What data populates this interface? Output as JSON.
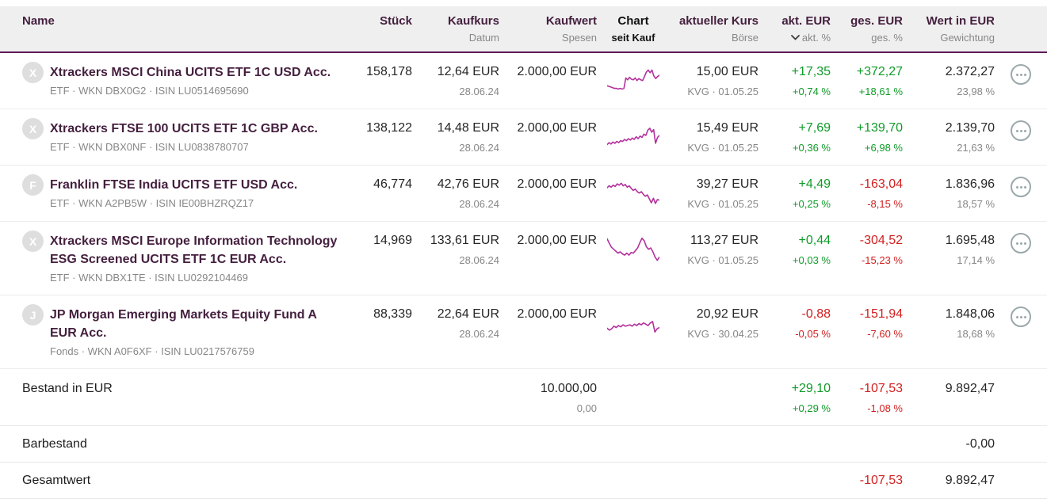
{
  "colors": {
    "accent": "#b3309c",
    "positive": "#0f9b28",
    "negative": "#d21f1f",
    "header_text": "#441f3e",
    "header_background": "#efefef",
    "header_border": "#5e1a56"
  },
  "header": {
    "name": {
      "label": "Name"
    },
    "stueck": {
      "label": "Stück"
    },
    "kaufkurs": {
      "label": "Kaufkurs",
      "sub": "Datum"
    },
    "kaufwert": {
      "label": "Kaufwert",
      "sub": "Spesen"
    },
    "chart": {
      "label": "Chart",
      "sub": "seit Kauf"
    },
    "kurs": {
      "label": "aktueller Kurs",
      "sub": "Börse"
    },
    "akt": {
      "label": "akt. EUR",
      "sub": "akt. %",
      "sort_icon": "chevron-down"
    },
    "ges": {
      "label": "ges. EUR",
      "sub": "ges. %"
    },
    "wert": {
      "label": "Wert in EUR",
      "sub": "Gewichtung"
    }
  },
  "rows": [
    {
      "avatar": "X",
      "name": "Xtrackers MSCI China UCITS ETF 1C USD Acc.",
      "sub": "ETF · WKN DBX0G2 · ISIN LU0514695690",
      "stueck": "158,178",
      "kaufkurs": "12,64 EUR",
      "kaufdatum": "28.06.24",
      "kaufwert": "2.000,00 EUR",
      "sparkline": [
        13,
        12,
        11,
        10,
        9,
        9,
        8,
        9,
        8,
        9,
        25,
        22,
        26,
        23,
        22,
        25,
        21,
        24,
        22,
        21,
        27,
        34,
        37,
        33,
        37,
        28,
        24,
        27,
        29
      ],
      "kurs": "15,00 EUR",
      "boerse": "KVG · 01.05.25",
      "akt_eur": "+17,35",
      "akt_pct": "+0,74 %",
      "ges_eur": "+372,27",
      "ges_pct": "+18,61 %",
      "wert": "2.372,27",
      "gewichtung": "23,98 %"
    },
    {
      "avatar": "X",
      "name": "Xtrackers FTSE 100 UCITS ETF 1C GBP Acc.",
      "sub": "ETF · WKN DBX0NF · ISIN LU0838780707",
      "stueck": "138,122",
      "kaufkurs": "14,48 EUR",
      "kaufdatum": "28.06.24",
      "kaufwert": "2.000,00 EUR",
      "sparkline": [
        9,
        12,
        10,
        13,
        11,
        14,
        12,
        15,
        14,
        17,
        15,
        18,
        16,
        19,
        17,
        21,
        18,
        22,
        20,
        25,
        23,
        31,
        34,
        28,
        32,
        11,
        20,
        23
      ],
      "kurs": "15,49 EUR",
      "boerse": "KVG · 01.05.25",
      "akt_eur": "+7,69",
      "akt_pct": "+0,36 %",
      "ges_eur": "+139,70",
      "ges_pct": "+6,98 %",
      "wert": "2.139,70",
      "gewichtung": "21,63 %"
    },
    {
      "avatar": "F",
      "name": "Franklin FTSE India UCITS ETF USD Acc.",
      "sub": "ETF · WKN A2PB5W · ISIN IE00BHZRQZ17",
      "stueck": "46,774",
      "kaufkurs": "42,76 EUR",
      "kaufdatum": "28.06.24",
      "kaufwert": "2.000,00 EUR",
      "sparkline": [
        29,
        32,
        30,
        33,
        31,
        35,
        33,
        36,
        32,
        34,
        30,
        32,
        28,
        25,
        27,
        23,
        21,
        23,
        19,
        16,
        18,
        12,
        6,
        13,
        5,
        11,
        10
      ],
      "kurs": "39,27 EUR",
      "boerse": "KVG · 01.05.25",
      "akt_eur": "+4,49",
      "akt_pct": "+0,25 %",
      "ges_eur": "-163,04",
      "ges_pct": "-8,15 %",
      "wert": "1.836,96",
      "gewichtung": "18,57 %"
    },
    {
      "avatar": "X",
      "name": "Xtrackers MSCI Europe Information Technology ESG Screened UCITS ETF 1C EUR Acc.",
      "sub": "ETF · WKN DBX1TE · ISIN LU0292104469",
      "stueck": "14,969",
      "kaufkurs": "133,61 EUR",
      "kaufdatum": "28.06.24",
      "kaufwert": "2.000,00 EUR",
      "sparkline": [
        37,
        30,
        24,
        21,
        18,
        15,
        17,
        14,
        12,
        15,
        12,
        16,
        15,
        19,
        23,
        31,
        38,
        34,
        25,
        21,
        23,
        17,
        9,
        4,
        9
      ],
      "kurs": "113,27 EUR",
      "boerse": "KVG · 01.05.25",
      "akt_eur": "+0,44",
      "akt_pct": "+0,03 %",
      "ges_eur": "-304,52",
      "ges_pct": "-15,23 %",
      "wert": "1.695,48",
      "gewichtung": "17,14 %"
    },
    {
      "avatar": "J",
      "name": "JP Morgan Emerging Markets Equity Fund A EUR Acc.",
      "sub": "Fonds · WKN A0F6XF · ISIN LU0217576759",
      "stueck": "88,339",
      "kaufkurs": "22,64 EUR",
      "kaufdatum": "28.06.24",
      "kaufwert": "2.000,00 EUR",
      "sparkline": [
        13,
        10,
        12,
        16,
        14,
        17,
        15,
        18,
        16,
        17,
        18,
        16,
        19,
        17,
        20,
        18,
        21,
        19,
        17,
        21,
        23,
        7,
        12,
        14
      ],
      "kurs": "20,92 EUR",
      "boerse": "KVG · 30.04.25",
      "akt_eur": "-0,88",
      "akt_pct": "-0,05 %",
      "ges_eur": "-151,94",
      "ges_pct": "-7,60 %",
      "wert": "1.848,06",
      "gewichtung": "18,68 %"
    }
  ],
  "summary": {
    "bestand": {
      "label": "Bestand in EUR",
      "kaufwert": "10.000,00",
      "spesen": "0,00",
      "akt_eur": "+29,10",
      "akt_pct": "+0,29 %",
      "ges_eur": "-107,53",
      "ges_pct": "-1,08 %",
      "wert": "9.892,47"
    },
    "barbestand": {
      "label": "Barbestand",
      "wert": "-0,00"
    },
    "gesamtwert": {
      "label": "Gesamtwert",
      "ges_eur": "-107,53",
      "wert": "9.892,47"
    }
  }
}
